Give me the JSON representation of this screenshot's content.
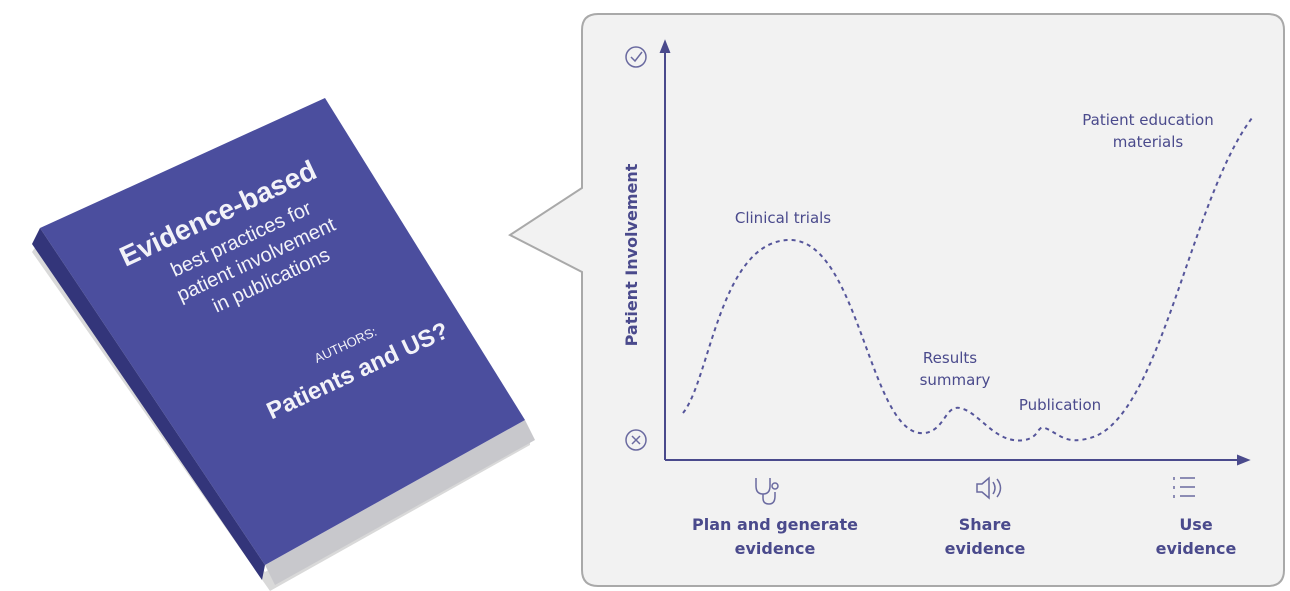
{
  "book": {
    "title": "Evidence-based",
    "subtitle": [
      "best practices for",
      "patient involvement",
      "in publications"
    ],
    "authors_label": "AUTHORS:",
    "authors": "Patients and US?"
  },
  "diagram": {
    "y_axis_label": "Patient Involvement",
    "annotations": [
      [
        "Clinical trials"
      ],
      [
        "Results",
        "summary"
      ],
      [
        "Publication"
      ],
      [
        "Patient education",
        "materials"
      ]
    ],
    "stages": [
      [
        "Plan and generate",
        "evidence"
      ],
      [
        "Share",
        "evidence"
      ],
      [
        "Use",
        "evidence"
      ]
    ]
  }
}
